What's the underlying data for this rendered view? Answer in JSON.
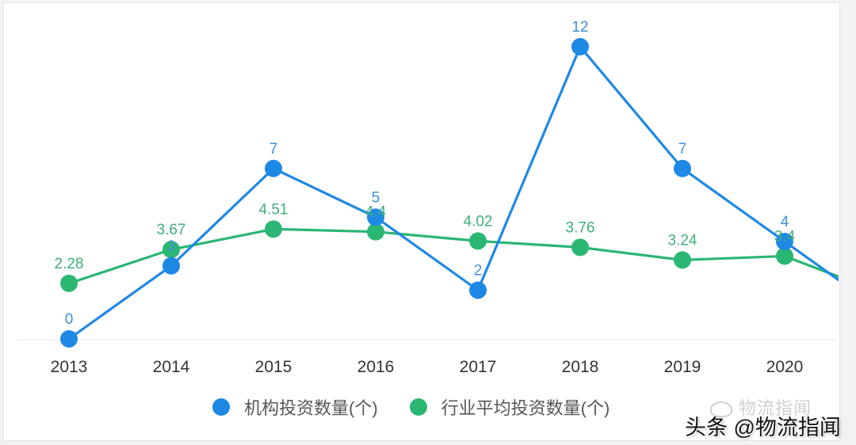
{
  "chart_data": {
    "type": "line",
    "title": "",
    "xlabel": "",
    "ylabel": "",
    "categories": [
      "2013",
      "2014",
      "2015",
      "2016",
      "2017",
      "2018",
      "2019",
      "2020"
    ],
    "series": [
      {
        "name": "机构投资数量(个)",
        "color": "#1e88e5",
        "values": [
          0,
          3,
          7,
          5,
          2,
          12,
          7,
          4
        ],
        "labels": [
          "0",
          "3",
          "7",
          "5",
          "2",
          "12",
          "7",
          "4"
        ]
      },
      {
        "name": "行业平均投资数量(个)",
        "color": "#2bb673",
        "values": [
          2.28,
          3.67,
          4.51,
          4.4,
          4.02,
          3.76,
          3.24,
          3.4
        ],
        "labels": [
          "2.28",
          "3.67",
          "4.51",
          "4.4",
          "4.02",
          "3.76",
          "3.24",
          "3.4"
        ]
      }
    ],
    "clipped_next_point_estimate": {
      "机构投资数量(个)": 1,
      "行业平均投资数量(个)": 1.8
    },
    "ylim": [
      0,
      12
    ],
    "grid": false,
    "legend_position": "bottom"
  },
  "legend": {
    "items": [
      {
        "label": "机构投资数量(个)",
        "color": "#1e88e5"
      },
      {
        "label": "行业平均投资数量(个)",
        "color": "#2bb673"
      }
    ]
  },
  "watermark": {
    "faint": "物流指闻",
    "main": "头条 @物流指闻"
  },
  "colors": {
    "axis_label": "#333333",
    "baseline": "#eeeeee",
    "blue_label": "#3f8fd8",
    "green_label": "#3fae78"
  }
}
